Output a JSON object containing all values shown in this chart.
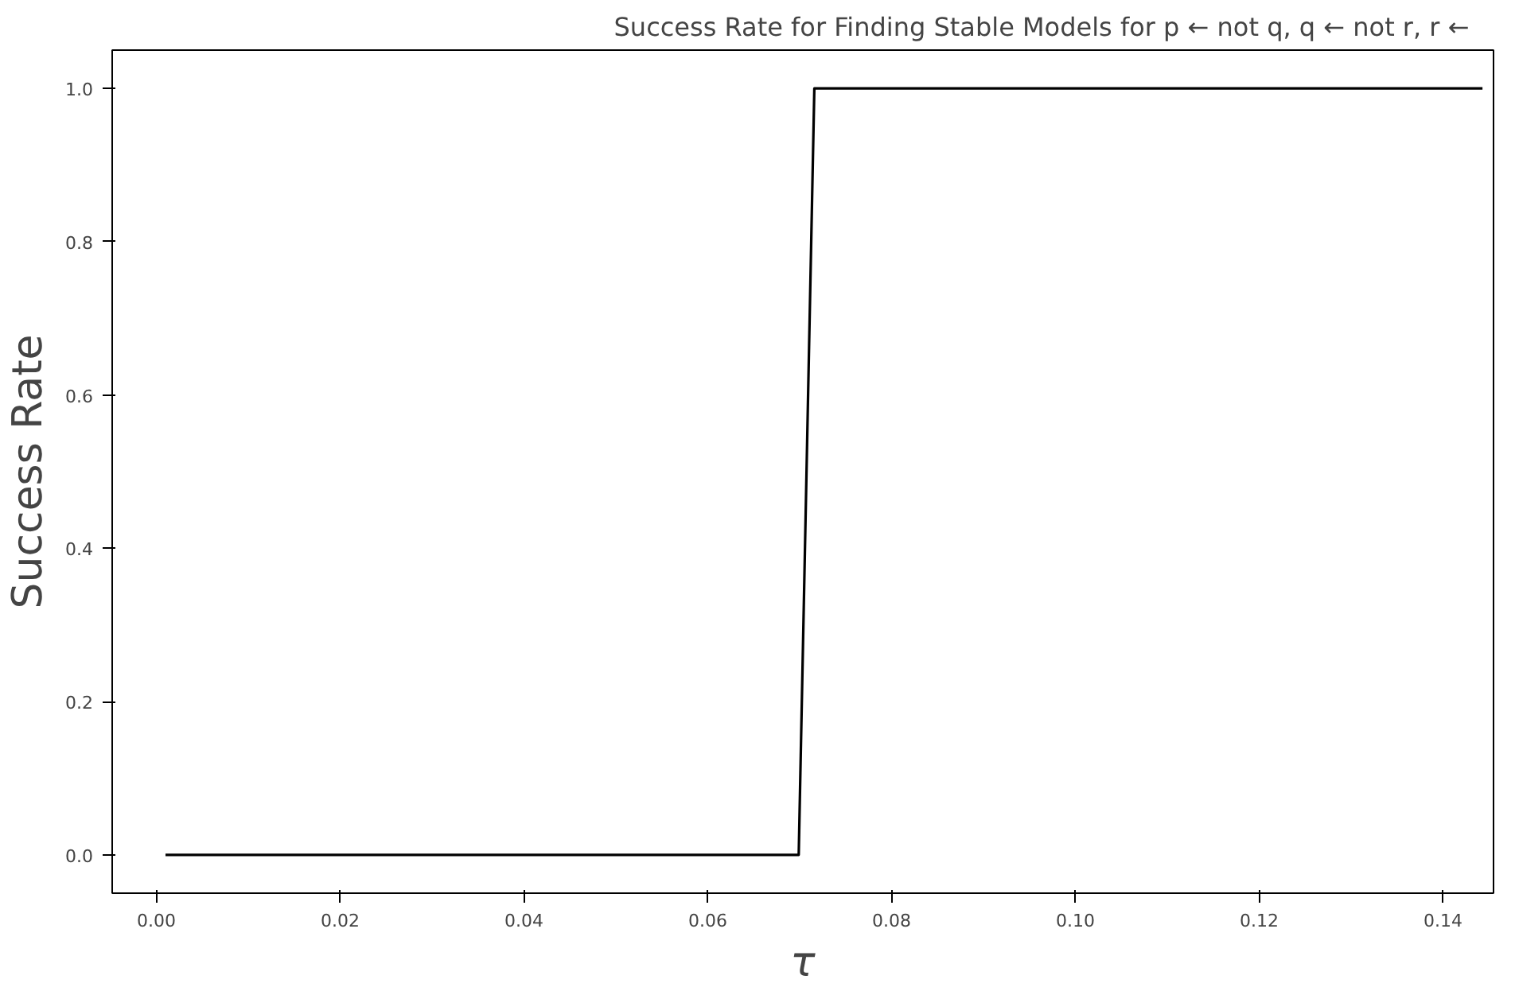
{
  "chart_data": {
    "type": "line",
    "title": "Success Rate for Finding Stable Models for p ← not q,  q ← not r,   r ←",
    "xlabel": "τ",
    "ylabel": "Success Rate",
    "x": [
      0.001,
      0.0699,
      0.0716,
      0.1443
    ],
    "series": [
      {
        "color": "#000000",
        "values": [
          0,
          0,
          1,
          1
        ]
      }
    ],
    "xlim": [
      -0.0048,
      0.1455
    ],
    "ylim": [
      -0.05,
      1.05
    ],
    "xticks": [
      {
        "value": 0,
        "label": "0.00"
      },
      0.02,
      0.04,
      0.06,
      0.08,
      {
        "value": 0.1,
        "label": "0.10"
      },
      0.12,
      0.14
    ],
    "yticks": [
      {
        "value": 0,
        "label": "0.0"
      },
      0.2,
      0.4,
      0.6,
      0.8,
      {
        "value": 1,
        "label": "1.0"
      }
    ],
    "grid": false,
    "marker": "none",
    "line_style": "solid"
  }
}
